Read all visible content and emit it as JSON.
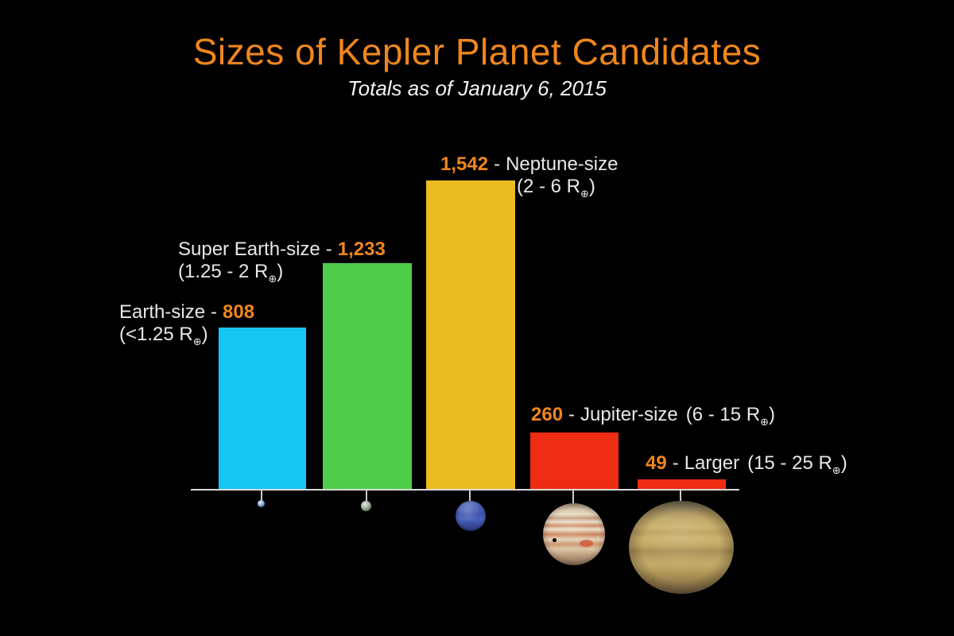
{
  "title": "Sizes of Kepler Planet Candidates",
  "subtitle": "Totals as of January 6, 2015",
  "separator": "-",
  "earth_symbol": "⊕",
  "colors": {
    "background": "#000000",
    "title_orange": "#F0861D",
    "number_orange": "#F0861D",
    "label_white": "#E8E8E8",
    "axis_line": "#D9D9D9"
  },
  "bars": [
    {
      "name": "Earth-size",
      "count": "808",
      "value": 808,
      "range_pre": "(<1.25 R",
      "range_post": ")",
      "color": "#15C6F2",
      "planet_icon": "earth-illustration"
    },
    {
      "name": "Super Earth-size",
      "count": "1,233",
      "value": 1233,
      "range_pre": "(1.25 - 2 R",
      "range_post": ")",
      "color": "#4FCC4A",
      "planet_icon": "super-earth-illustration"
    },
    {
      "name": "Neptune-size",
      "count": "1,542",
      "value": 1542,
      "range_pre": "(2 - 6 R",
      "range_post": ")",
      "color": "#EBBC20",
      "planet_icon": "neptune-illustration"
    },
    {
      "name": "Jupiter-size",
      "count": "260",
      "value": 260,
      "range_pre": "(6 - 15 R",
      "range_post": ")",
      "color": "#EE2B13",
      "planet_icon": "jupiter-illustration"
    },
    {
      "name": "Larger",
      "count": "49",
      "value": 49,
      "range_pre": "(15 - 25 R",
      "range_post": ")",
      "color": "#EE2B13",
      "planet_icon": "large-planet-illustration"
    }
  ],
  "chart_data": {
    "type": "bar",
    "title": "Sizes of Kepler Planet Candidates",
    "subtitle": "Totals as of January 6, 2015",
    "categories": [
      "Earth-size",
      "Super Earth-size",
      "Neptune-size",
      "Jupiter-size",
      "Larger"
    ],
    "values": [
      808,
      1233,
      1542,
      260,
      49
    ],
    "value_labels": [
      "808",
      "1,233",
      "1,542",
      "260",
      "49"
    ],
    "ranges": [
      "<1.25 R⊕",
      "1.25 - 2 R⊕",
      "2 - 6 R⊕",
      "6 - 15 R⊕",
      "15 - 25 R⊕"
    ],
    "bar_colors": [
      "#15C6F2",
      "#4FCC4A",
      "#EBBC20",
      "#EE2B13",
      "#EE2B13"
    ],
    "xlabel": "",
    "ylabel": "",
    "grid": false,
    "legend": false,
    "axes": "single x baseline, no y-axis, values shown as data labels",
    "annotations": "scaled planet illustrations hang below the baseline under each bar: Earth, Super-Earth, Neptune, Jupiter, larger gas giant"
  }
}
